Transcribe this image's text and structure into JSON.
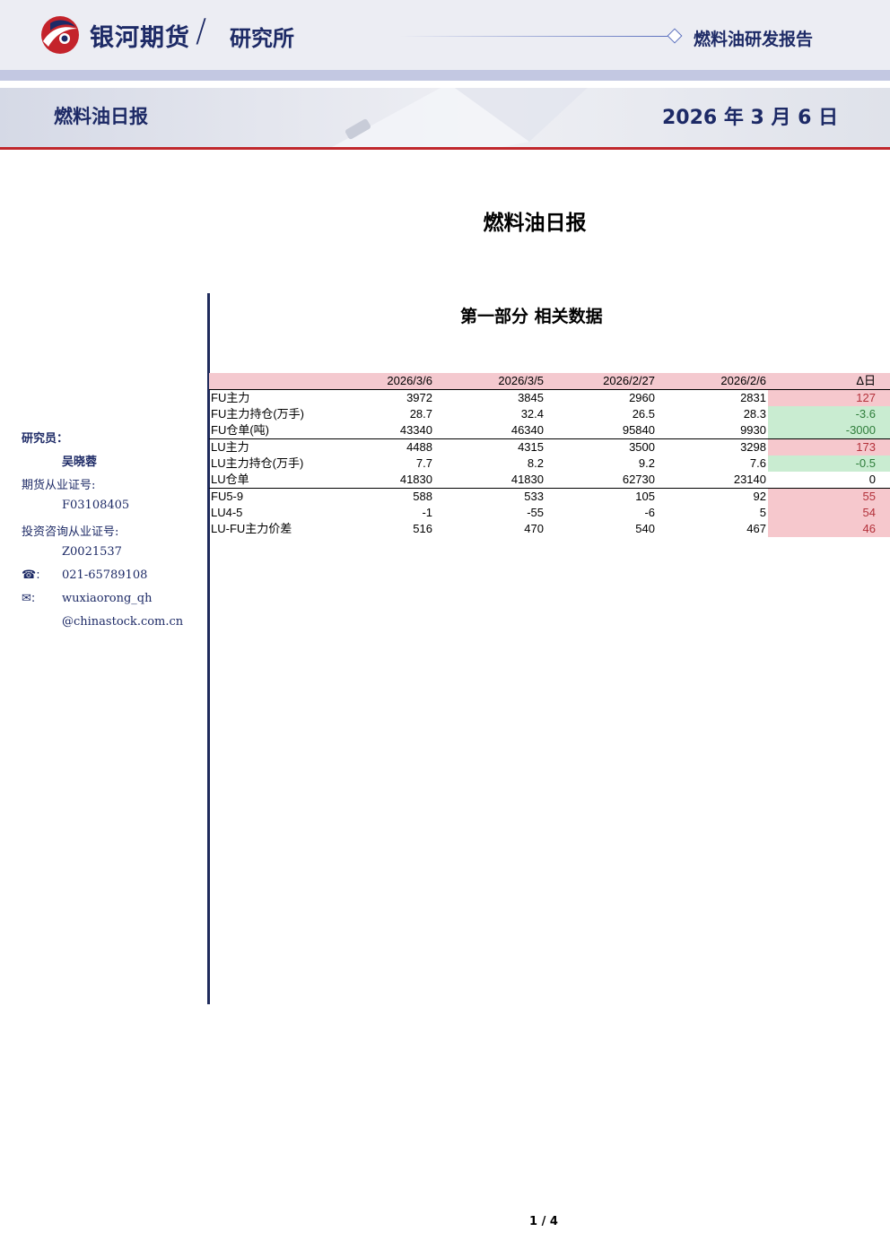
{
  "header": {
    "brand": "银河期货",
    "slash": "/",
    "institute": "研究所",
    "report_type": "燃料油研发报告"
  },
  "banner": {
    "title": "燃料油日报",
    "date": "2026 年 3 月 6 日"
  },
  "doc_title": "燃料油日报",
  "section_title": "第一部分 相关数据",
  "sidebar": {
    "researcher_label": "研究员：",
    "researcher_name": "吴晓蓉",
    "futures_cert_label": "期货从业证号:",
    "futures_cert": "F03108405",
    "invest_cert_label": "投资咨询从业证号:",
    "invest_cert": "Z0021537",
    "phone_icon": "☎:",
    "phone": "021-65789108",
    "email_icon": "✉:",
    "email_line1": "wuxiaorong_qh",
    "email_line2": "@chinastock.com.cn"
  },
  "table": {
    "headers": [
      "",
      "2026/3/6",
      "2026/3/5",
      "2026/2/27",
      "2026/2/6",
      "Δ日"
    ],
    "rows": [
      {
        "label": "FU主力",
        "values": [
          "3972",
          "3845",
          "2960",
          "2831"
        ],
        "delta": "127",
        "delta_sign": "pos"
      },
      {
        "label": "FU主力持仓(万手)",
        "values": [
          "28.7",
          "32.4",
          "26.5",
          "28.3"
        ],
        "delta": "-3.6",
        "delta_sign": "neg"
      },
      {
        "label": "FU仓单(吨)",
        "values": [
          "43340",
          "46340",
          "95840",
          "9930"
        ],
        "delta": "-3000",
        "delta_sign": "neg"
      },
      {
        "label": "LU主力",
        "values": [
          "4488",
          "4315",
          "3500",
          "3298"
        ],
        "delta": "173",
        "delta_sign": "pos"
      },
      {
        "label": "LU主力持仓(万手)",
        "values": [
          "7.7",
          "8.2",
          "9.2",
          "7.6"
        ],
        "delta": "-0.5",
        "delta_sign": "neg"
      },
      {
        "label": "LU仓单",
        "values": [
          "41830",
          "41830",
          "62730",
          "23140"
        ],
        "delta": "0",
        "delta_sign": "zero"
      },
      {
        "label": "FU5-9",
        "values": [
          "588",
          "533",
          "105",
          "92"
        ],
        "delta": "55",
        "delta_sign": "pos"
      },
      {
        "label": "LU4-5",
        "values": [
          "-1",
          "-55",
          "-6",
          "5"
        ],
        "delta": "54",
        "delta_sign": "pos"
      },
      {
        "label": "LU-FU主力价差",
        "values": [
          "516",
          "470",
          "540",
          "467"
        ],
        "delta": "46",
        "delta_sign": "pos"
      }
    ]
  },
  "footer": {
    "page": "1 / 4"
  }
}
